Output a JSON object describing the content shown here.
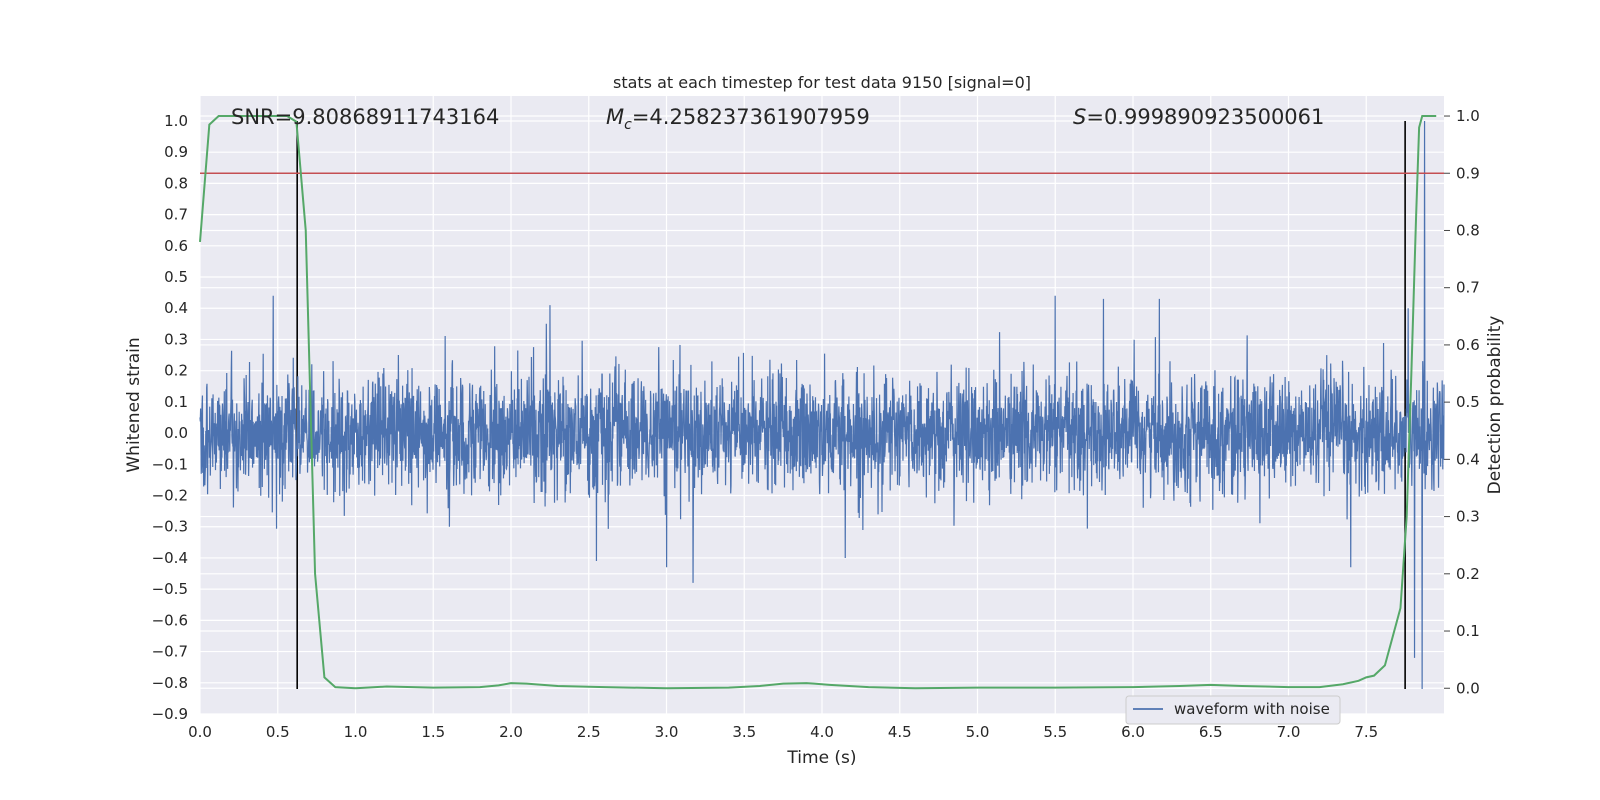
{
  "chart_data": {
    "type": "line",
    "title": "stats at each timestep for test data 9150 [signal=0]",
    "xlabel": "Time (s)",
    "ylabel_left": "Whitened strain",
    "ylabel_right": "Detection probability",
    "xlim": [
      0.0,
      8.0
    ],
    "ylim_left": [
      -0.9,
      1.08
    ],
    "ylim_right": [
      -0.045,
      1.035
    ],
    "x_ticks": [
      0.0,
      0.5,
      1.0,
      1.5,
      2.0,
      2.5,
      3.0,
      3.5,
      4.0,
      4.5,
      5.0,
      5.5,
      6.0,
      6.5,
      7.0,
      7.5
    ],
    "x_tick_labels": [
      "0.0",
      "0.5",
      "1.0",
      "1.5",
      "2.0",
      "2.5",
      "3.0",
      "3.5",
      "4.0",
      "4.5",
      "5.0",
      "5.5",
      "6.0",
      "6.5",
      "7.0",
      "7.5"
    ],
    "y_left_ticks": [
      1.0,
      0.9,
      0.8,
      0.7,
      0.6,
      0.5,
      0.4,
      0.3,
      0.2,
      0.1,
      0.0,
      -0.1,
      -0.2,
      -0.3,
      -0.4,
      -0.5,
      -0.6,
      -0.7,
      -0.8,
      -0.9
    ],
    "y_left_tick_labels": [
      "1.0",
      "0.9",
      "0.8",
      "0.7",
      "0.6",
      "0.5",
      "0.4",
      "0.3",
      "0.2",
      "0.1",
      "0.0",
      "−0.1",
      "−0.2",
      "−0.3",
      "−0.4",
      "−0.5",
      "−0.6",
      "−0.7",
      "−0.8",
      "−0.9"
    ],
    "y_right_ticks": [
      1.0,
      0.9,
      0.8,
      0.7,
      0.6,
      0.5,
      0.4,
      0.3,
      0.2,
      0.1,
      0.0
    ],
    "y_right_tick_labels": [
      "1.0",
      "0.9",
      "0.8",
      "0.7",
      "0.6",
      "0.5",
      "0.4",
      "0.3",
      "0.2",
      "0.1",
      "0.0"
    ],
    "annotations": {
      "snr": "SNR=9.80868911743164",
      "mc_symbol": "M",
      "mc_subscript": "c",
      "mc_value": "=4.258237361907959",
      "s_symbol": "S",
      "s_value": "=0.999890923500061"
    },
    "threshold_line": {
      "axis": "right",
      "value": 0.9,
      "color": "#c44e52"
    },
    "vertical_lines": [
      {
        "x": 0.625,
        "y0": -0.82,
        "y1": 1.0
      },
      {
        "x": 7.75,
        "y0": -0.82,
        "y1": 1.0
      }
    ],
    "series": [
      {
        "name": "waveform with noise",
        "axis": "left",
        "color": "#4c72b0",
        "kind": "noise",
        "std": 0.092,
        "x_range": [
          0.0,
          8.0
        ],
        "samples": 4096,
        "spikes": [
          {
            "x": 7.875,
            "value": 1.0
          },
          {
            "x": 7.86,
            "value": -0.82
          },
          {
            "x": 7.81,
            "value": -0.72
          },
          {
            "x": 3.17,
            "value": -0.48
          },
          {
            "x": 3.0,
            "value": -0.43
          },
          {
            "x": 4.15,
            "value": -0.4
          },
          {
            "x": 2.55,
            "value": -0.41
          },
          {
            "x": 7.4,
            "value": -0.43
          },
          {
            "x": 7.77,
            "value": 0.4
          },
          {
            "x": 0.47,
            "value": 0.44
          },
          {
            "x": 5.5,
            "value": 0.44
          },
          {
            "x": 2.25,
            "value": 0.41
          },
          {
            "x": 6.17,
            "value": 0.43
          },
          {
            "x": 5.81,
            "value": 0.43
          }
        ]
      },
      {
        "name": "detection probability",
        "axis": "right",
        "color": "#55a868",
        "x": [
          0.0,
          0.06,
          0.12,
          0.2,
          0.3,
          0.4,
          0.5,
          0.56,
          0.62,
          0.68,
          0.74,
          0.8,
          0.87,
          1.0,
          1.2,
          1.5,
          1.8,
          1.92,
          2.0,
          2.1,
          2.3,
          2.6,
          3.0,
          3.4,
          3.6,
          3.75,
          3.9,
          3.95,
          4.05,
          4.3,
          4.6,
          5.0,
          5.5,
          6.0,
          6.3,
          6.5,
          6.7,
          7.0,
          7.2,
          7.35,
          7.45,
          7.5,
          7.55,
          7.62,
          7.68,
          7.72,
          7.76,
          7.79,
          7.82,
          7.84,
          7.86,
          7.9,
          7.95
        ],
        "y": [
          0.78,
          0.985,
          1.0,
          1.0,
          1.0,
          1.0,
          1.0,
          1.0,
          0.99,
          0.8,
          0.2,
          0.019,
          0.002,
          0.0,
          0.003,
          0.001,
          0.002,
          0.005,
          0.009,
          0.008,
          0.004,
          0.002,
          0.0,
          0.001,
          0.004,
          0.008,
          0.009,
          0.008,
          0.006,
          0.002,
          0.0,
          0.001,
          0.001,
          0.002,
          0.004,
          0.006,
          0.004,
          0.002,
          0.002,
          0.007,
          0.013,
          0.019,
          0.022,
          0.04,
          0.1,
          0.14,
          0.3,
          0.55,
          0.82,
          0.98,
          1.0,
          1.0,
          1.0
        ]
      }
    ],
    "legend": {
      "position": "bottom-right",
      "entries": [
        "waveform with noise"
      ]
    },
    "grid": true,
    "style": "seaborn-darkgrid"
  }
}
